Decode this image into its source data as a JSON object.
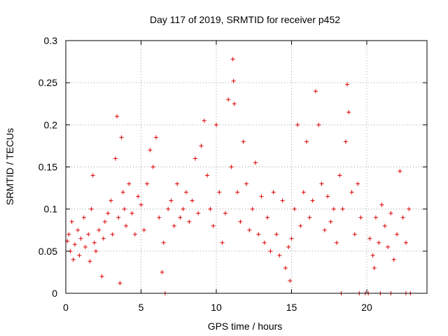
{
  "chart_data": {
    "type": "scatter",
    "title": "Day 117 of 2019, SRMTID for receiver p452",
    "xlabel": "GPS time / hours",
    "ylabel": "SRMTID / TECUs",
    "xlim": [
      0,
      24
    ],
    "ylim": [
      0,
      0.3
    ],
    "xticks": [
      0,
      5,
      10,
      15,
      20
    ],
    "xtick_labels": [
      "0",
      "5",
      "10",
      "15",
      "20"
    ],
    "yticks": [
      0,
      0.05,
      0.1,
      0.15,
      0.2,
      0.25,
      0.3
    ],
    "ytick_labels": [
      "0",
      "0.05",
      "0.1",
      "0.15",
      "0.2",
      "0.25",
      "0.3"
    ],
    "grid": true,
    "marker": "plus",
    "marker_color": "#dd0000",
    "series": [
      {
        "name": "SRMTID",
        "points": [
          [
            0.1,
            0.062
          ],
          [
            0.2,
            0.07
          ],
          [
            0.3,
            0.05
          ],
          [
            0.4,
            0.085
          ],
          [
            0.5,
            0.04
          ],
          [
            0.6,
            0.058
          ],
          [
            0.8,
            0.075
          ],
          [
            0.9,
            0.045
          ],
          [
            1.0,
            0.065
          ],
          [
            1.2,
            0.09
          ],
          [
            1.3,
            0.055
          ],
          [
            1.5,
            0.07
          ],
          [
            1.6,
            0.038
          ],
          [
            1.7,
            0.1
          ],
          [
            1.8,
            0.14
          ],
          [
            1.9,
            0.06
          ],
          [
            2.0,
            0.05
          ],
          [
            2.2,
            0.075
          ],
          [
            2.4,
            0.02
          ],
          [
            2.5,
            0.065
          ],
          [
            2.6,
            0.085
          ],
          [
            2.8,
            0.095
          ],
          [
            3.0,
            0.11
          ],
          [
            3.1,
            0.07
          ],
          [
            3.3,
            0.16
          ],
          [
            3.4,
            0.21
          ],
          [
            3.5,
            0.09
          ],
          [
            3.6,
            0.012
          ],
          [
            3.7,
            0.185
          ],
          [
            3.8,
            0.12
          ],
          [
            3.9,
            0.1
          ],
          [
            4.0,
            0.08
          ],
          [
            4.2,
            0.13
          ],
          [
            4.4,
            0.095
          ],
          [
            4.6,
            0.07
          ],
          [
            4.8,
            0.115
          ],
          [
            5.0,
            0.105
          ],
          [
            5.2,
            0.075
          ],
          [
            5.4,
            0.13
          ],
          [
            5.6,
            0.17
          ],
          [
            5.8,
            0.15
          ],
          [
            6.0,
            0.185
          ],
          [
            6.2,
            0.09
          ],
          [
            6.4,
            0.025
          ],
          [
            6.5,
            0.06
          ],
          [
            6.6,
            0.0
          ],
          [
            6.8,
            0.1
          ],
          [
            7.0,
            0.11
          ],
          [
            7.2,
            0.08
          ],
          [
            7.4,
            0.13
          ],
          [
            7.6,
            0.09
          ],
          [
            7.8,
            0.1
          ],
          [
            8.0,
            0.12
          ],
          [
            8.2,
            0.085
          ],
          [
            8.4,
            0.11
          ],
          [
            8.6,
            0.16
          ],
          [
            8.8,
            0.095
          ],
          [
            9.0,
            0.175
          ],
          [
            9.2,
            0.205
          ],
          [
            9.4,
            0.14
          ],
          [
            9.6,
            0.1
          ],
          [
            9.8,
            0.08
          ],
          [
            10.0,
            0.2
          ],
          [
            10.2,
            0.12
          ],
          [
            10.4,
            0.06
          ],
          [
            10.6,
            0.095
          ],
          [
            10.8,
            0.23
          ],
          [
            11.0,
            0.15
          ],
          [
            11.1,
            0.278
          ],
          [
            11.15,
            0.252
          ],
          [
            11.2,
            0.225
          ],
          [
            11.4,
            0.12
          ],
          [
            11.6,
            0.085
          ],
          [
            11.8,
            0.18
          ],
          [
            12.0,
            0.13
          ],
          [
            12.2,
            0.075
          ],
          [
            12.4,
            0.1
          ],
          [
            12.6,
            0.155
          ],
          [
            12.8,
            0.07
          ],
          [
            13.0,
            0.115
          ],
          [
            13.2,
            0.06
          ],
          [
            13.4,
            0.09
          ],
          [
            13.6,
            0.05
          ],
          [
            13.8,
            0.12
          ],
          [
            14.0,
            0.07
          ],
          [
            14.2,
            0.045
          ],
          [
            14.4,
            0.11
          ],
          [
            14.6,
            0.03
          ],
          [
            14.8,
            0.055
          ],
          [
            14.9,
            0.015
          ],
          [
            15.0,
            0.065
          ],
          [
            15.2,
            0.1
          ],
          [
            15.4,
            0.2
          ],
          [
            15.6,
            0.08
          ],
          [
            15.8,
            0.12
          ],
          [
            16.0,
            0.18
          ],
          [
            16.2,
            0.09
          ],
          [
            16.4,
            0.11
          ],
          [
            16.6,
            0.24
          ],
          [
            16.8,
            0.2
          ],
          [
            17.0,
            0.13
          ],
          [
            17.2,
            0.075
          ],
          [
            17.4,
            0.115
          ],
          [
            17.6,
            0.085
          ],
          [
            17.8,
            0.1
          ],
          [
            18.0,
            0.06
          ],
          [
            18.2,
            0.14
          ],
          [
            18.4,
            0.1
          ],
          [
            18.6,
            0.18
          ],
          [
            18.7,
            0.248
          ],
          [
            18.8,
            0.215
          ],
          [
            19.0,
            0.12
          ],
          [
            19.2,
            0.07
          ],
          [
            19.4,
            0.13
          ],
          [
            19.6,
            0.09
          ],
          [
            20.2,
            0.065
          ],
          [
            20.4,
            0.045
          ],
          [
            20.5,
            0.03
          ],
          [
            20.6,
            0.09
          ],
          [
            20.8,
            0.06
          ],
          [
            21.0,
            0.105
          ],
          [
            21.2,
            0.08
          ],
          [
            21.4,
            0.055
          ],
          [
            21.6,
            0.095
          ],
          [
            21.8,
            0.04
          ],
          [
            22.0,
            0.07
          ],
          [
            22.2,
            0.145
          ],
          [
            22.4,
            0.09
          ],
          [
            22.6,
            0.06
          ],
          [
            22.8,
            0.1
          ],
          [
            18.3,
            0.0
          ],
          [
            19.5,
            0.0
          ],
          [
            19.9,
            0.0
          ],
          [
            20.1,
            0.0
          ],
          [
            20.9,
            0.0
          ],
          [
            21.6,
            0.0
          ],
          [
            22.6,
            0.0
          ],
          [
            22.9,
            0.0
          ]
        ]
      }
    ]
  }
}
